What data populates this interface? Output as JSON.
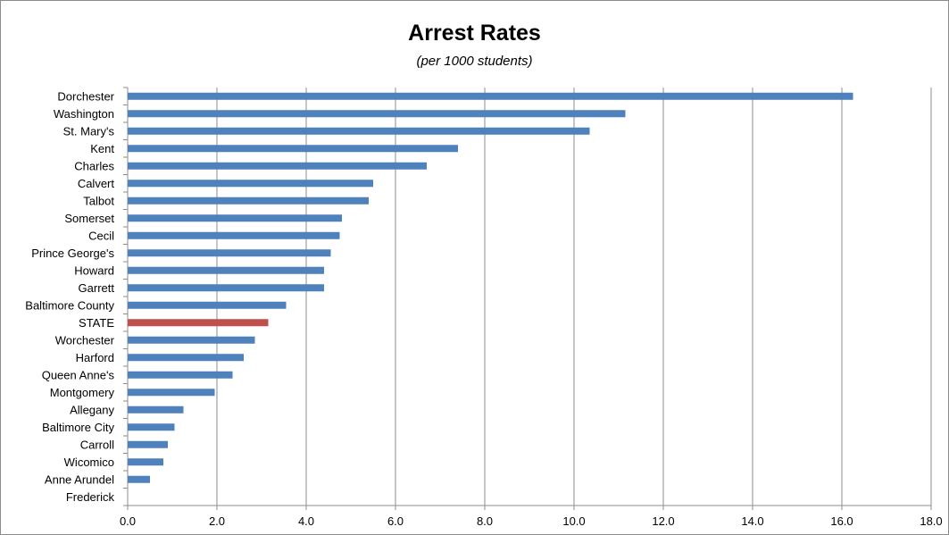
{
  "chart_data": {
    "type": "bar",
    "orientation": "horizontal",
    "title": "Arrest Rates",
    "subtitle": "(per 1000 students)",
    "categories": [
      "Dorchester",
      "Washington",
      "St. Mary's",
      "Kent",
      "Charles",
      "Calvert",
      "Talbot",
      "Somerset",
      "Cecil",
      "Prince George's",
      "Howard",
      "Garrett",
      "Baltimore County",
      "STATE",
      "Worchester",
      "Harford",
      "Queen Anne's",
      "Montgomery",
      "Allegany",
      "Baltimore City",
      "Carroll",
      "Wicomico",
      "Anne Arundel",
      "Frederick"
    ],
    "values": [
      16.25,
      11.15,
      10.35,
      7.4,
      6.7,
      5.5,
      5.4,
      4.8,
      4.75,
      4.55,
      4.4,
      4.4,
      3.55,
      3.15,
      2.85,
      2.6,
      2.35,
      1.95,
      1.25,
      1.05,
      0.9,
      0.8,
      0.5,
      0.0
    ],
    "highlight_category": "STATE",
    "xlim": [
      0,
      18
    ],
    "x_ticks": [
      "0.0",
      "2.0",
      "4.0",
      "6.0",
      "8.0",
      "10.0",
      "12.0",
      "14.0",
      "16.0",
      "18.0"
    ],
    "grid": "vertical",
    "colors": {
      "bar": "#4f81bd",
      "highlight": "#c0504d",
      "grid": "#8c8c8c",
      "axis": "#8c8c8c"
    }
  }
}
